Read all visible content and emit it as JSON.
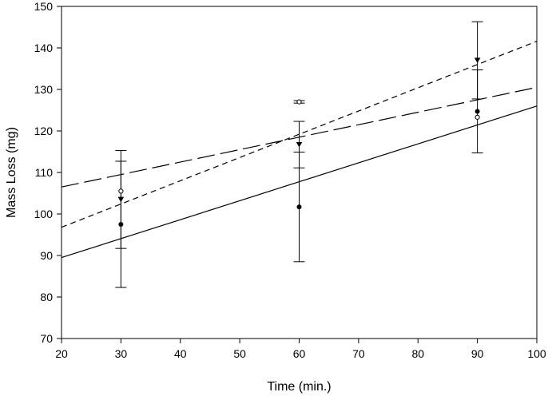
{
  "chart_data": {
    "type": "scatter",
    "title": "",
    "xlabel": "Time (min.)",
    "ylabel": "Mass Loss (mg)",
    "xlim": [
      20,
      100
    ],
    "ylim": [
      70,
      150
    ],
    "xticks": [
      20,
      30,
      40,
      50,
      60,
      70,
      80,
      90,
      100
    ],
    "yticks": [
      70,
      80,
      90,
      100,
      110,
      120,
      130,
      140,
      150
    ],
    "grid": false,
    "legend": "none",
    "series": [
      {
        "name": "filled circle",
        "marker": "circle-filled",
        "points": [
          {
            "x": 30,
            "y": 97.5,
            "err": 15.2
          },
          {
            "x": 60,
            "y": 101.7,
            "err": 13.2
          },
          {
            "x": 90,
            "y": 124.7,
            "err": 10.0
          }
        ],
        "fit": {
          "style": "solid",
          "x": [
            20,
            100
          ],
          "y": [
            89.5,
            126.0
          ]
        }
      },
      {
        "name": "open circle",
        "marker": "circle-open",
        "points": [
          {
            "x": 30,
            "y": 105.5,
            "err": 0
          },
          {
            "x": 60,
            "y": 127.0,
            "err": 0.3
          },
          {
            "x": 90,
            "y": 123.3,
            "err": 0
          }
        ],
        "fit": {
          "style": "long-dash",
          "x": [
            20,
            100
          ],
          "y": [
            106.5,
            130.5
          ]
        }
      },
      {
        "name": "filled triangle",
        "marker": "triangle-down",
        "points": [
          {
            "x": 30,
            "y": 103.5,
            "err": 11.8
          },
          {
            "x": 60,
            "y": 116.7,
            "err": 5.6
          },
          {
            "x": 90,
            "y": 137.0,
            "err": 9.3
          }
        ],
        "fit": {
          "style": "short-dash",
          "x": [
            20,
            100
          ],
          "y": [
            96.8,
            141.6
          ]
        }
      }
    ]
  }
}
